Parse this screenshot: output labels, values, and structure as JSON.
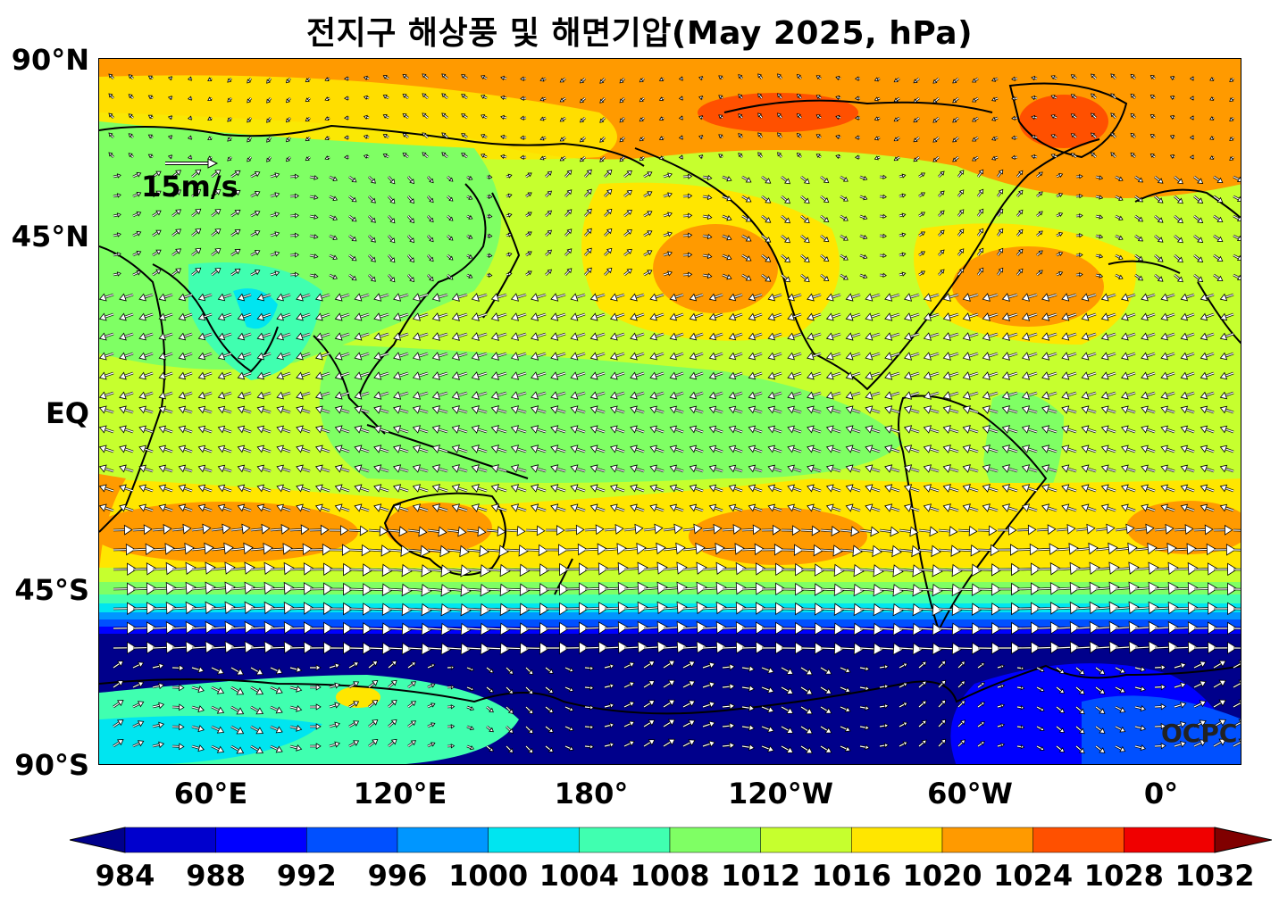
{
  "title": "전지구 해상풍 및 해면기압(May 2025, hPa)",
  "lat_labels": [
    "90°N",
    "45°N",
    "EQ",
    "45°S",
    "90°S"
  ],
  "lon_labels": [
    "60°E",
    "120°E",
    "180°",
    "120°W",
    "60°W",
    "0°"
  ],
  "scale": {
    "label": "15m/s"
  },
  "credit": "OCPC",
  "colorbar": {
    "ticks": [
      "984",
      "988",
      "992",
      "996",
      "1000",
      "1004",
      "1008",
      "1012",
      "1016",
      "1020",
      "1024",
      "1028",
      "1032"
    ],
    "colors": [
      "#00008b",
      "#0000cd",
      "#0000ff",
      "#0050ff",
      "#0096ff",
      "#00e5f0",
      "#40ffb0",
      "#7fff64",
      "#c6ff2e",
      "#ffe600",
      "#ff9a00",
      "#ff5000",
      "#f00000",
      "#800000"
    ],
    "extend": "both"
  }
}
